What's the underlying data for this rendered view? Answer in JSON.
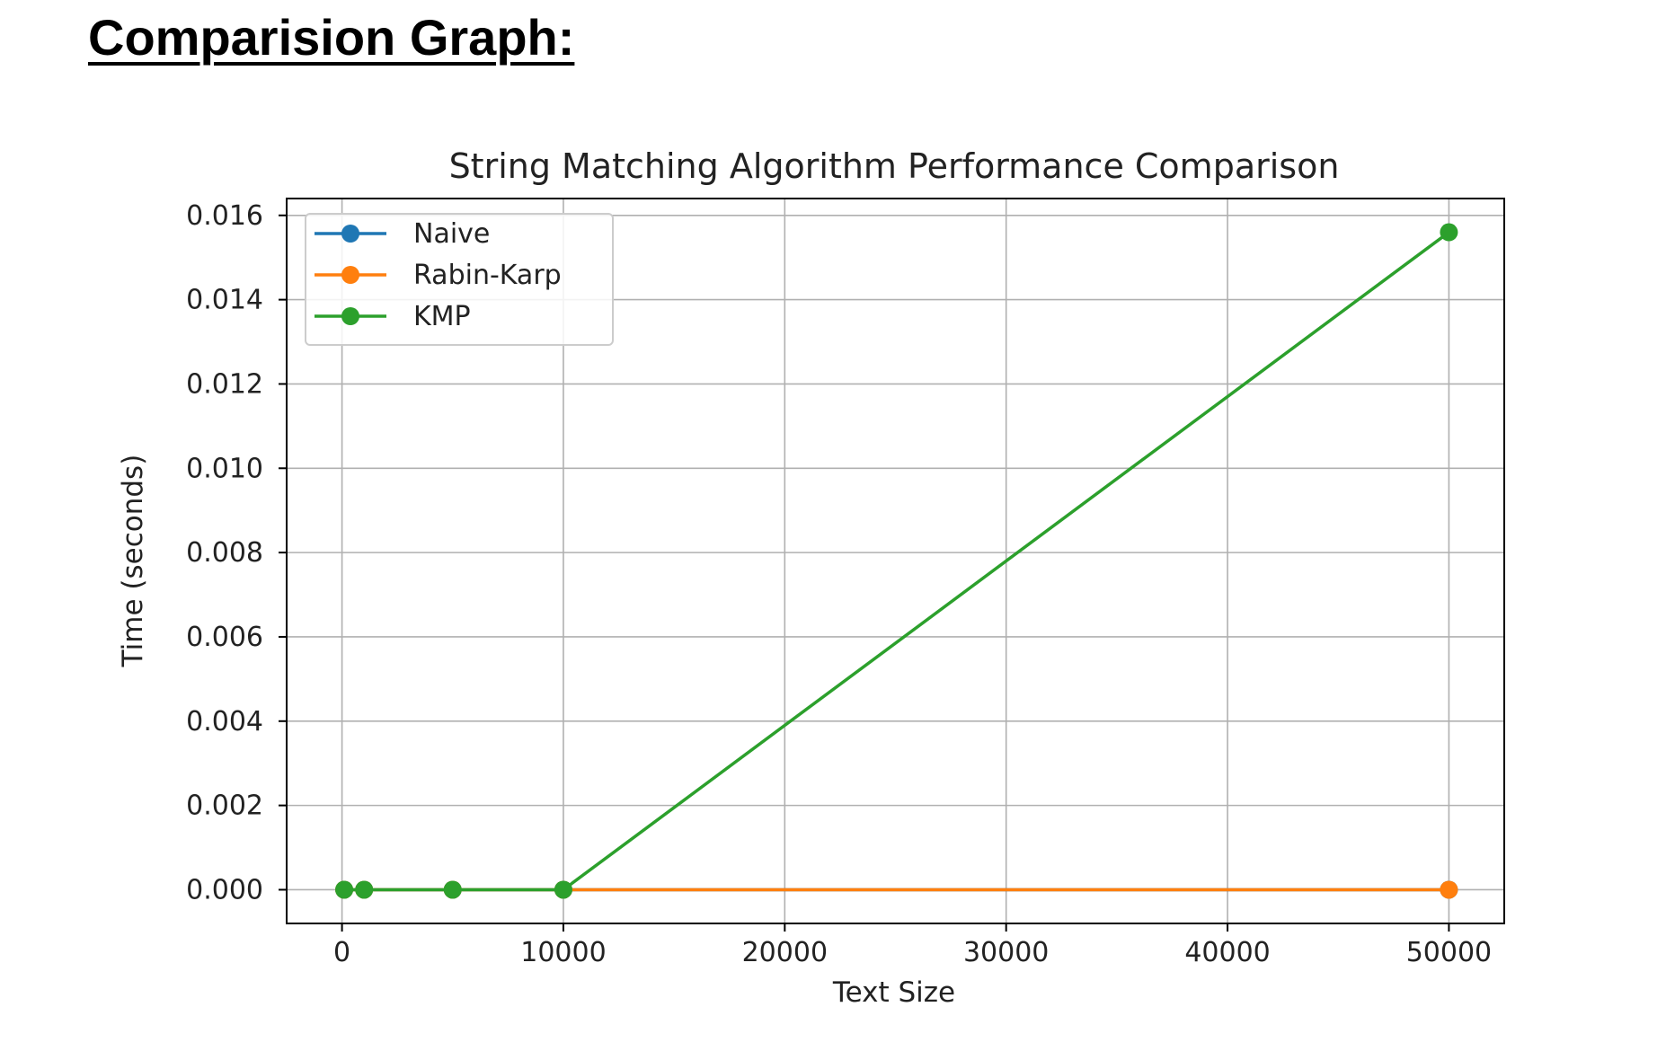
{
  "page": {
    "heading": "Comparision Graph:"
  },
  "chart_data": {
    "type": "line",
    "title": "String Matching Algorithm Performance Comparison",
    "xlabel": "Text Size",
    "ylabel": "Time (seconds)",
    "x": [
      100,
      1000,
      5000,
      10000,
      50000
    ],
    "xlim": [
      -2500,
      52500
    ],
    "ylim": [
      -0.0008,
      0.0164
    ],
    "xticks": [
      0,
      10000,
      20000,
      30000,
      40000,
      50000
    ],
    "xtick_labels": [
      "0",
      "10000",
      "20000",
      "30000",
      "40000",
      "50000"
    ],
    "yticks": [
      0.0,
      0.002,
      0.004,
      0.006,
      0.008,
      0.01,
      0.012,
      0.014,
      0.016
    ],
    "ytick_labels": [
      "0.000",
      "0.002",
      "0.004",
      "0.006",
      "0.008",
      "0.010",
      "0.012",
      "0.014",
      "0.016"
    ],
    "grid": true,
    "legend_position": "upper-left",
    "series": [
      {
        "name": "Naive",
        "color": "#1f77b4",
        "values": [
          0.0,
          0.0,
          0.0,
          0.0,
          0.0
        ]
      },
      {
        "name": "Rabin-Karp",
        "color": "#ff7f0e",
        "values": [
          0.0,
          0.0,
          0.0,
          0.0,
          0.0
        ]
      },
      {
        "name": "KMP",
        "color": "#2ca02c",
        "values": [
          0.0,
          0.0,
          0.0,
          0.0,
          0.0156
        ]
      }
    ]
  }
}
